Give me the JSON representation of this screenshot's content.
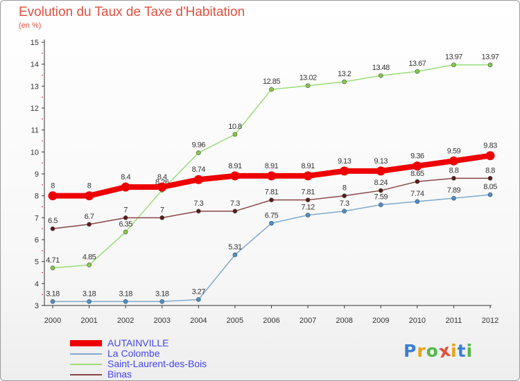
{
  "header": {
    "title": "Evolution du Taux de Taxe d'Habitation",
    "subtitle": "(en %)"
  },
  "logo": {
    "text": "Proxiti",
    "letters": [
      "P",
      "r",
      "o",
      "x",
      "i",
      "t",
      "i"
    ],
    "letter_colors": [
      "#3a7fd5",
      "#e8a317",
      "#55b84a",
      "#e0503e",
      "#e8a317",
      "#3a7fd5",
      "#55b84a"
    ]
  },
  "chart_data": {
    "type": "line",
    "title": "Evolution du Taux de Taxe d'Habitation",
    "ylabel": "(en %)",
    "x": [
      "2000",
      "2001",
      "2002",
      "2003",
      "2004",
      "2005",
      "2006",
      "2007",
      "2008",
      "2009",
      "2010",
      "2011",
      "2012"
    ],
    "ylim": [
      3,
      15
    ],
    "yticks": [
      "3",
      "4",
      "5",
      "6",
      "7",
      "8",
      "9",
      "10",
      "11",
      "12",
      "13",
      "14",
      "15"
    ],
    "grid": false,
    "legend": "bottom-left",
    "series": [
      {
        "name": "Saint-Laurent-des-Bois",
        "color": "#99dd77",
        "marker": "#88cc44",
        "values": [
          4.71,
          4.85,
          6.35,
          8.26,
          9.96,
          10.8,
          12.85,
          13.02,
          13.2,
          13.48,
          13.67,
          13.97,
          13.97
        ],
        "labels": [
          "4.71",
          "4.85",
          "6.35",
          "8.26",
          "9.96",
          "10.8",
          "12.85",
          "13.02",
          "13.2",
          "13.48",
          "13.67",
          "13.97",
          "13.97"
        ]
      },
      {
        "name": "La Colombe",
        "color": "#7fa9cc",
        "marker": "#4a90d0",
        "values": [
          3.18,
          3.18,
          3.18,
          3.18,
          3.27,
          5.31,
          6.75,
          7.12,
          7.3,
          7.59,
          7.74,
          7.89,
          8.05
        ],
        "labels": [
          "3.18",
          "3.18",
          "3.18",
          "3.18",
          "3.27",
          "5.31",
          "6.75",
          "7.12",
          "7.3",
          "7.59",
          "7.74",
          "7.89",
          "8.05"
        ]
      },
      {
        "name": "Binas",
        "color": "#884444",
        "marker": "#5a1c1c",
        "values": [
          6.5,
          6.7,
          7,
          7,
          7.3,
          7.3,
          7.81,
          7.81,
          8,
          8.24,
          8.65,
          8.8,
          8.8
        ],
        "labels": [
          "6.5",
          "6.7",
          "7",
          "7",
          "7.3",
          "7.3",
          "7.81",
          "7.81",
          "8",
          "8.24",
          "8.65",
          "8.8",
          "8.8"
        ]
      },
      {
        "name": "AUTAINVILLE",
        "color": "#ee0000",
        "marker": "#ee0000",
        "values": [
          8,
          8,
          8.4,
          8.4,
          8.74,
          8.91,
          8.91,
          8.91,
          9.13,
          9.13,
          9.36,
          9.59,
          9.83
        ],
        "labels": [
          "8",
          "8",
          "8.4",
          "8.4",
          "8.74",
          "8.91",
          "8.91",
          "8.91",
          "9.13",
          "9.13",
          "9.36",
          "9.59",
          "9.83"
        ]
      }
    ]
  },
  "legend": {
    "items": [
      {
        "label": "AUTAINVILLE",
        "color": "#ee0000"
      },
      {
        "label": "La Colombe",
        "color": "#7fa9cc"
      },
      {
        "label": "Saint-Laurent-des-Bois",
        "color": "#99dd77"
      },
      {
        "label": "Binas",
        "color": "#884444"
      }
    ]
  }
}
